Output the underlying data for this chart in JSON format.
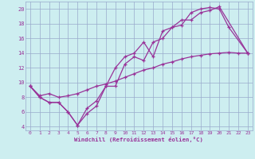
{
  "xlabel": "Windchill (Refroidissement éolien,°C)",
  "xlim": [
    -0.5,
    23.5
  ],
  "ylim": [
    3.5,
    21
  ],
  "xticks": [
    0,
    1,
    2,
    3,
    4,
    5,
    6,
    7,
    8,
    9,
    10,
    11,
    12,
    13,
    14,
    15,
    16,
    17,
    18,
    19,
    20,
    21,
    22,
    23
  ],
  "yticks": [
    4,
    6,
    8,
    10,
    12,
    14,
    16,
    18,
    20
  ],
  "bg_color": "#cdeef0",
  "grid_color": "#99aacc",
  "line_color": "#993399",
  "line1_x": [
    0,
    1,
    2,
    3,
    4,
    5,
    6,
    7,
    8,
    9,
    10,
    11,
    12,
    13,
    14,
    15,
    16,
    17,
    18,
    19,
    20,
    21,
    23
  ],
  "line1_y": [
    9.5,
    8.0,
    7.3,
    7.3,
    6.0,
    4.2,
    5.8,
    6.8,
    9.5,
    9.5,
    12.5,
    13.5,
    13.0,
    15.5,
    16.0,
    17.5,
    17.8,
    19.5,
    20.0,
    20.2,
    20.0,
    17.5,
    14.0
  ],
  "line2_x": [
    0,
    1,
    2,
    3,
    4,
    5,
    6,
    7,
    8,
    9,
    10,
    11,
    12,
    13,
    14,
    15,
    16,
    17,
    18,
    19,
    20,
    23
  ],
  "line2_y": [
    9.5,
    8.0,
    7.3,
    7.3,
    6.0,
    4.2,
    6.5,
    7.5,
    9.5,
    12.0,
    13.5,
    14.0,
    15.5,
    13.5,
    17.0,
    17.5,
    18.5,
    18.5,
    19.5,
    19.8,
    20.3,
    14.0
  ],
  "line3_x": [
    0,
    1,
    2,
    3,
    4,
    5,
    6,
    7,
    8,
    9,
    10,
    11,
    12,
    13,
    14,
    15,
    16,
    17,
    18,
    19,
    20,
    21,
    22,
    23
  ],
  "line3_y": [
    9.5,
    8.2,
    8.5,
    8.0,
    8.2,
    8.5,
    9.0,
    9.5,
    9.8,
    10.2,
    10.7,
    11.2,
    11.7,
    12.0,
    12.5,
    12.8,
    13.2,
    13.5,
    13.7,
    13.9,
    14.0,
    14.1,
    14.0,
    14.0
  ]
}
